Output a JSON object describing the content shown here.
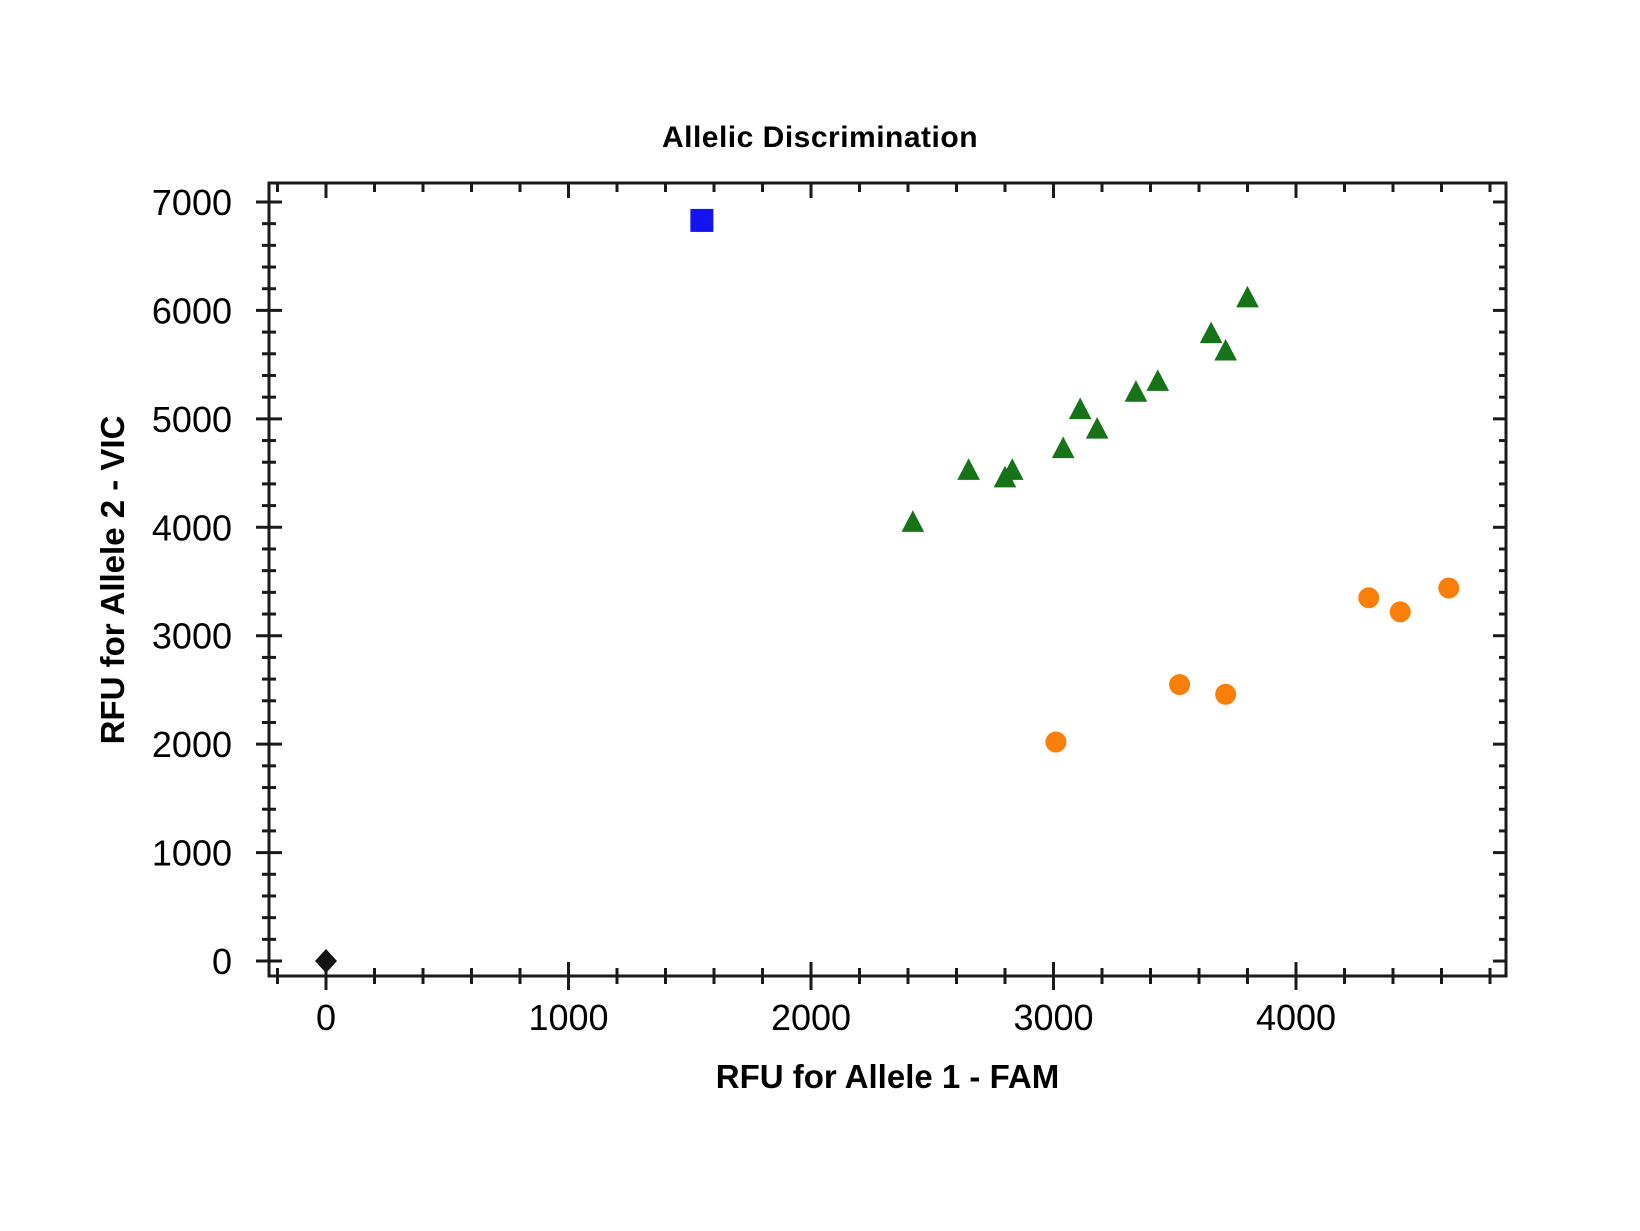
{
  "chart_data": {
    "type": "scatter",
    "title": "Allelic Discrimination",
    "xlabel": "RFU for Allele 1 - FAM",
    "ylabel": "RFU for Allele 2 - VIC",
    "xlim": [
      -235,
      4866
    ],
    "ylim": [
      -138,
      7175
    ],
    "x_major_ticks": [
      0,
      1000,
      2000,
      3000,
      4000
    ],
    "y_major_ticks": [
      0,
      1000,
      2000,
      3000,
      4000,
      5000,
      6000,
      7000
    ],
    "minor_tick_step": 200,
    "x_minor_range": [
      -200,
      4800
    ],
    "y_minor_range": [
      0,
      7000
    ],
    "grid": false,
    "legend": "none",
    "frame_color": "#1a1a1a",
    "series": [
      {
        "name": "blue-square-cluster",
        "marker": "square",
        "color": "#1414f0",
        "points": [
          [
            1550,
            6830
          ]
        ]
      },
      {
        "name": "green-triangle-cluster",
        "marker": "triangle",
        "color": "#177317",
        "points": [
          [
            2420,
            4050
          ],
          [
            2650,
            4530
          ],
          [
            2800,
            4460
          ],
          [
            2830,
            4530
          ],
          [
            3040,
            4730
          ],
          [
            3110,
            5090
          ],
          [
            3180,
            4910
          ],
          [
            3340,
            5250
          ],
          [
            3430,
            5350
          ],
          [
            3650,
            5790
          ],
          [
            3710,
            5630
          ],
          [
            3800,
            6120
          ]
        ]
      },
      {
        "name": "orange-circle-cluster",
        "marker": "circle",
        "color": "#f97f08",
        "points": [
          [
            3010,
            2020
          ],
          [
            3520,
            2550
          ],
          [
            3710,
            2460
          ],
          [
            4300,
            3350
          ],
          [
            4430,
            3220
          ],
          [
            4630,
            3440
          ]
        ]
      },
      {
        "name": "black-diamond-ntc",
        "marker": "diamond",
        "color": "#141414",
        "points": [
          [
            0,
            0
          ]
        ]
      }
    ]
  }
}
